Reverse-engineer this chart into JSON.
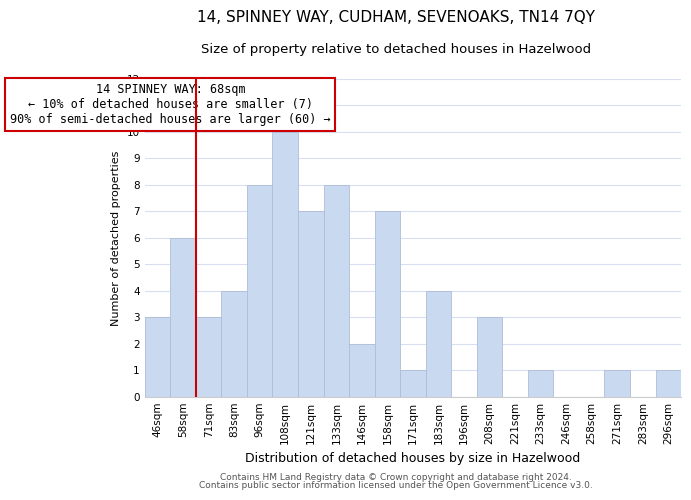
{
  "title": "14, SPINNEY WAY, CUDHAM, SEVENOAKS, TN14 7QY",
  "subtitle": "Size of property relative to detached houses in Hazelwood",
  "xlabel": "Distribution of detached houses by size in Hazelwood",
  "ylabel": "Number of detached properties",
  "bin_labels": [
    "46sqm",
    "58sqm",
    "71sqm",
    "83sqm",
    "96sqm",
    "108sqm",
    "121sqm",
    "133sqm",
    "146sqm",
    "158sqm",
    "171sqm",
    "183sqm",
    "196sqm",
    "208sqm",
    "221sqm",
    "233sqm",
    "246sqm",
    "258sqm",
    "271sqm",
    "283sqm",
    "296sqm"
  ],
  "bar_heights": [
    3,
    6,
    3,
    4,
    8,
    10,
    7,
    8,
    2,
    7,
    1,
    4,
    0,
    3,
    0,
    1,
    0,
    0,
    1,
    0,
    1
  ],
  "bar_color": "#c9d9f0",
  "bar_edge_color": "#b0bcd8",
  "vline_x_index": 2,
  "vline_color": "#cc0000",
  "annotation_title": "14 SPINNEY WAY: 68sqm",
  "annotation_line1": "← 10% of detached houses are smaller (7)",
  "annotation_line2": "90% of semi-detached houses are larger (60) →",
  "annotation_box_color": "#ffffff",
  "annotation_box_edge": "#cc0000",
  "ylim": [
    0,
    12
  ],
  "yticks": [
    0,
    1,
    2,
    3,
    4,
    5,
    6,
    7,
    8,
    9,
    10,
    11,
    12
  ],
  "footer1": "Contains HM Land Registry data © Crown copyright and database right 2024.",
  "footer2": "Contains public sector information licensed under the Open Government Licence v3.0.",
  "title_fontsize": 11,
  "subtitle_fontsize": 9.5,
  "xlabel_fontsize": 9,
  "ylabel_fontsize": 8,
  "tick_fontsize": 7.5,
  "footer_fontsize": 6.5,
  "annotation_fontsize": 8.5
}
